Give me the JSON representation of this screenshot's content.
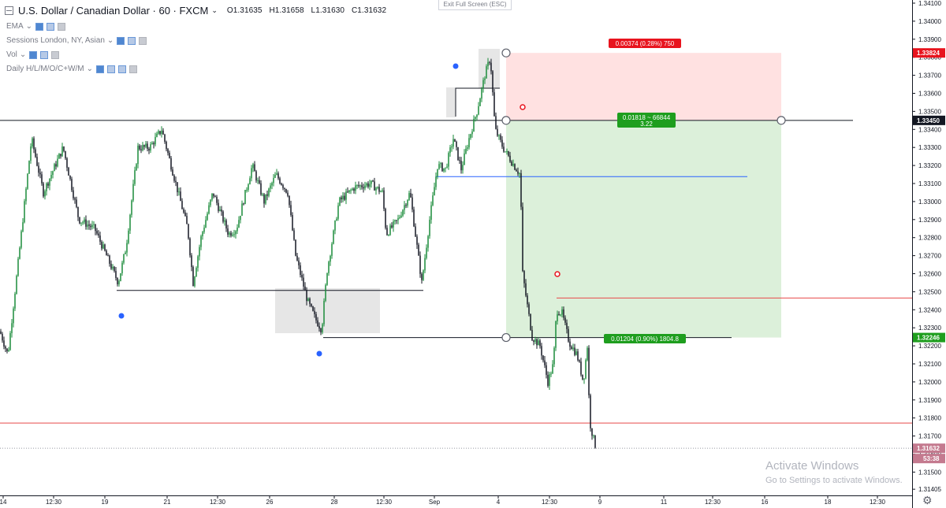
{
  "header": {
    "title": "U.S. Dollar / Canadian Dollar · 60 · FXCM",
    "open": "O1.31635",
    "high": "H1.31658",
    "low": "L1.31630",
    "close": "C1.31632"
  },
  "indicators": [
    {
      "label": "EMA"
    },
    {
      "label": "Sessions London, NY, Asian"
    },
    {
      "label": "Vol"
    },
    {
      "label": "Daily H/L/M/O/C+W/M"
    }
  ],
  "exit_label": "Exit Full Screen (ESC)",
  "watermark": {
    "line1": "Activate Windows",
    "line2": "Go to Settings to activate Windows."
  },
  "colors": {
    "up": "#1a8b3a",
    "down": "#131722",
    "stop_zone": "#ffe1e1",
    "target_zone": "#dcf0da",
    "red_label": "#e8141e",
    "green_label": "#1e9e1e",
    "price_last": "#c47a8f"
  },
  "chart_data": {
    "type": "candlestick",
    "symbol": "USDCAD",
    "interval": "60",
    "ylim": [
      1.31405,
      1.3412
    ],
    "y_ticks": [
      "1.34100",
      "1.34000",
      "1.33900",
      "1.33800",
      "1.33700",
      "1.33600",
      "1.33500",
      "1.33400",
      "1.33300",
      "1.33200",
      "1.33100",
      "1.33000",
      "1.32900",
      "1.32800",
      "1.32700",
      "1.32600",
      "1.32500",
      "1.32400",
      "1.32300",
      "1.32200",
      "1.32100",
      "1.32000",
      "1.31900",
      "1.31800",
      "1.31700",
      "1.31600",
      "1.31500",
      "1.31405"
    ],
    "x_ticks": [
      "14",
      "12:30",
      "19",
      "21",
      "12:30",
      "26",
      "28",
      "12:30",
      "Sep",
      "4",
      "12:30",
      "9",
      "11",
      "12:30",
      "16",
      "18",
      "12:30"
    ],
    "price_badges": [
      {
        "value": "1.33824",
        "role": "stop"
      },
      {
        "value": "1.33450",
        "role": "entry"
      },
      {
        "value": "1.32246",
        "role": "target"
      },
      {
        "value": "1.31632",
        "role": "last"
      },
      {
        "value": "53:38",
        "role": "countdown"
      }
    ],
    "position_labels": {
      "stop": "0.00374 (0.28%) 750",
      "entry_line1": "0.01818 ~ 66844",
      "entry_line2": "3.22",
      "target": "0.01204 (0.90%) 1804.8"
    },
    "key_path": [
      [
        0,
        1.3228
      ],
      [
        10,
        1.3215
      ],
      [
        22,
        1.3262
      ],
      [
        40,
        1.3335
      ],
      [
        55,
        1.3305
      ],
      [
        80,
        1.333
      ],
      [
        100,
        1.329
      ],
      [
        120,
        1.3285
      ],
      [
        135,
        1.327
      ],
      [
        150,
        1.3255
      ],
      [
        160,
        1.3275
      ],
      [
        175,
        1.333
      ],
      [
        190,
        1.333
      ],
      [
        205,
        1.334
      ],
      [
        220,
        1.3315
      ],
      [
        238,
        1.3285
      ],
      [
        245,
        1.3255
      ],
      [
        255,
        1.328
      ],
      [
        270,
        1.3305
      ],
      [
        290,
        1.3282
      ],
      [
        300,
        1.3285
      ],
      [
        320,
        1.332
      ],
      [
        335,
        1.33
      ],
      [
        350,
        1.3315
      ],
      [
        365,
        1.3305
      ],
      [
        375,
        1.327
      ],
      [
        390,
        1.3245
      ],
      [
        400,
        1.3235
      ],
      [
        408,
        1.3229
      ],
      [
        415,
        1.3262
      ],
      [
        430,
        1.33
      ],
      [
        450,
        1.3308
      ],
      [
        470,
        1.331
      ],
      [
        485,
        1.3305
      ],
      [
        490,
        1.3282
      ],
      [
        505,
        1.329
      ],
      [
        520,
        1.3305
      ],
      [
        535,
        1.3255
      ],
      [
        545,
        1.329
      ],
      [
        555,
        1.332
      ],
      [
        565,
        1.3318
      ],
      [
        575,
        1.3335
      ],
      [
        585,
        1.3318
      ],
      [
        595,
        1.3335
      ],
      [
        605,
        1.335
      ],
      [
        615,
        1.337
      ],
      [
        622,
        1.338
      ],
      [
        628,
        1.334
      ],
      [
        638,
        1.333
      ],
      [
        652,
        1.332
      ],
      [
        660,
        1.3315
      ],
      [
        663,
        1.326
      ],
      [
        668,
        1.3245
      ],
      [
        675,
        1.3225
      ],
      [
        685,
        1.322
      ],
      [
        695,
        1.32
      ],
      [
        702,
        1.321
      ],
      [
        706,
        1.324
      ],
      [
        713,
        1.3238
      ],
      [
        722,
        1.3222
      ],
      [
        732,
        1.3215
      ],
      [
        740,
        1.32
      ],
      [
        745,
        1.322
      ],
      [
        748,
        1.3178
      ],
      [
        752,
        1.317
      ],
      [
        756,
        1.31632
      ]
    ],
    "levels": [
      {
        "price": 1.3345,
        "from": 0,
        "to": 1082,
        "color": "#131722"
      },
      {
        "price": 1.33138,
        "from": 553,
        "to": 948,
        "color": "#2962ff"
      },
      {
        "price": 1.32507,
        "from": 148,
        "to": 537,
        "color": "#131722"
      },
      {
        "price": 1.32246,
        "from": 410,
        "to": 928,
        "color": "#131722"
      },
      {
        "price": 1.32465,
        "from": 706,
        "to": 1157,
        "color": "#e84a4a"
      },
      {
        "price": 1.31772,
        "from": 0,
        "to": 1157,
        "color": "#e84a4a"
      }
    ],
    "position": {
      "entry": 1.3345,
      "stop": 1.33824,
      "target": 1.32246
    },
    "grid": false,
    "legend": "none"
  }
}
